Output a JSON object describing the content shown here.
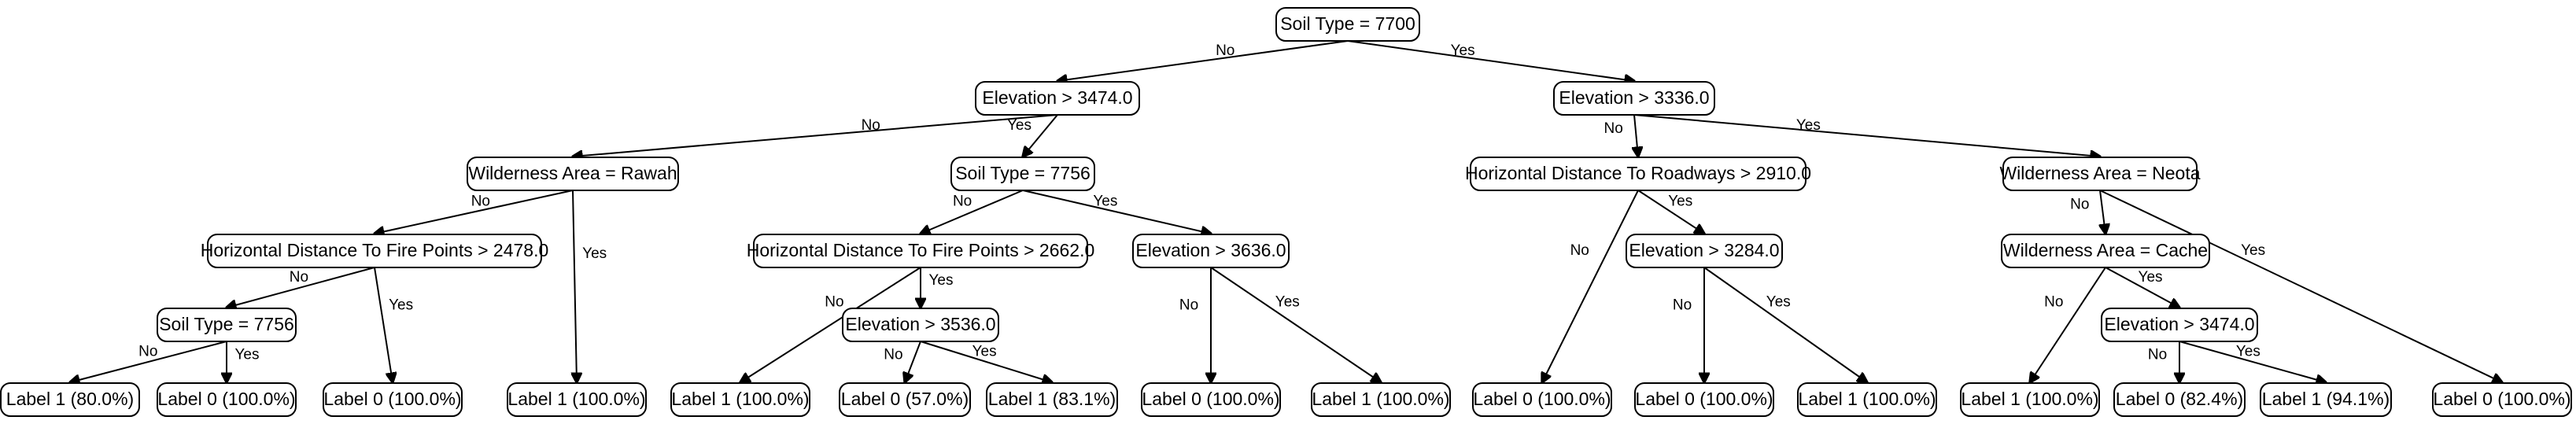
{
  "diagram": {
    "type": "decision-tree",
    "nodes": [
      {
        "id": "n0",
        "label": "Soil Type = 7700"
      },
      {
        "id": "n1",
        "label": "Elevation > 3474.0"
      },
      {
        "id": "n2",
        "label": "Elevation > 3336.0"
      },
      {
        "id": "n3",
        "label": "Wilderness Area = Rawah"
      },
      {
        "id": "n4",
        "label": "Soil Type = 7756"
      },
      {
        "id": "n5",
        "label": "Horizontal Distance To Roadways > 2910.0"
      },
      {
        "id": "n6",
        "label": "Wilderness Area = Neota"
      },
      {
        "id": "n7",
        "label": "Horizontal Distance To Fire Points > 2478.0"
      },
      {
        "id": "n8",
        "label": "Label 1 (100.0%)"
      },
      {
        "id": "n9",
        "label": "Horizontal Distance To Fire Points > 2662.0"
      },
      {
        "id": "n10",
        "label": "Elevation > 3636.0"
      },
      {
        "id": "n11",
        "label": "Label 0 (100.0%)"
      },
      {
        "id": "n12",
        "label": "Elevation > 3284.0"
      },
      {
        "id": "n13",
        "label": "Wilderness Area = Cache"
      },
      {
        "id": "n14",
        "label": "Label 0 (100.0%)"
      },
      {
        "id": "n15",
        "label": "Soil Type = 7756"
      },
      {
        "id": "n16",
        "label": "Label 0 (100.0%)"
      },
      {
        "id": "n17",
        "label": "Label 1 (100.0%)"
      },
      {
        "id": "n18",
        "label": "Elevation > 3536.0"
      },
      {
        "id": "n19",
        "label": "Label 0 (100.0%)"
      },
      {
        "id": "n20",
        "label": "Label 1 (100.0%)"
      },
      {
        "id": "n21",
        "label": "Label 0 (100.0%)"
      },
      {
        "id": "n22",
        "label": "Label 1 (100.0%)"
      },
      {
        "id": "n23",
        "label": "Label 1 (100.0%)"
      },
      {
        "id": "n24",
        "label": "Elevation > 3474.0"
      },
      {
        "id": "n25",
        "label": "Label 1 (80.0%)"
      },
      {
        "id": "n26",
        "label": "Label 0 (100.0%)"
      },
      {
        "id": "n27",
        "label": "Label 0 (57.0%)"
      },
      {
        "id": "n28",
        "label": "Label 1 (83.1%)"
      },
      {
        "id": "n29",
        "label": "Label 0 (82.4%)"
      },
      {
        "id": "n30",
        "label": "Label 1 (94.1%)"
      }
    ],
    "edges": [
      {
        "from": "n0",
        "to": "n1",
        "label": "No"
      },
      {
        "from": "n0",
        "to": "n2",
        "label": "Yes"
      },
      {
        "from": "n1",
        "to": "n3",
        "label": "No"
      },
      {
        "from": "n1",
        "to": "n4",
        "label": "Yes"
      },
      {
        "from": "n2",
        "to": "n5",
        "label": "No"
      },
      {
        "from": "n2",
        "to": "n6",
        "label": "Yes"
      },
      {
        "from": "n3",
        "to": "n7",
        "label": "No"
      },
      {
        "from": "n3",
        "to": "n8",
        "label": "Yes"
      },
      {
        "from": "n4",
        "to": "n9",
        "label": "No"
      },
      {
        "from": "n4",
        "to": "n10",
        "label": "Yes"
      },
      {
        "from": "n5",
        "to": "n11",
        "label": "No"
      },
      {
        "from": "n5",
        "to": "n12",
        "label": "Yes"
      },
      {
        "from": "n6",
        "to": "n13",
        "label": "No"
      },
      {
        "from": "n6",
        "to": "n14",
        "label": "Yes"
      },
      {
        "from": "n7",
        "to": "n15",
        "label": "No"
      },
      {
        "from": "n7",
        "to": "n16",
        "label": "Yes"
      },
      {
        "from": "n9",
        "to": "n17",
        "label": "No"
      },
      {
        "from": "n9",
        "to": "n18",
        "label": "Yes"
      },
      {
        "from": "n10",
        "to": "n19",
        "label": "No"
      },
      {
        "from": "n10",
        "to": "n20",
        "label": "Yes"
      },
      {
        "from": "n12",
        "to": "n21",
        "label": "No"
      },
      {
        "from": "n12",
        "to": "n22",
        "label": "Yes"
      },
      {
        "from": "n13",
        "to": "n23",
        "label": "No"
      },
      {
        "from": "n13",
        "to": "n24",
        "label": "Yes"
      },
      {
        "from": "n15",
        "to": "n25",
        "label": "No"
      },
      {
        "from": "n15",
        "to": "n26",
        "label": "Yes"
      },
      {
        "from": "n18",
        "to": "n27",
        "label": "No"
      },
      {
        "from": "n18",
        "to": "n28",
        "label": "Yes"
      },
      {
        "from": "n24",
        "to": "n29",
        "label": "No"
      },
      {
        "from": "n24",
        "to": "n30",
        "label": "Yes"
      }
    ]
  }
}
